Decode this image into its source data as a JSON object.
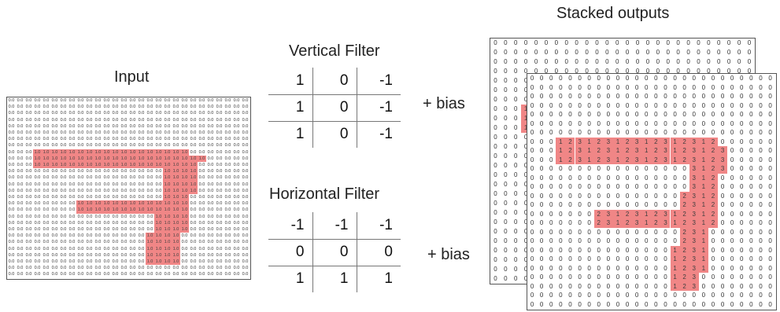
{
  "input": {
    "title": "Input",
    "rows": 28,
    "cols": 28,
    "highlight_color": "#f08080"
  },
  "vertical_filter": {
    "title": "Vertical Filter",
    "values": [
      [
        "1",
        "0",
        "-1"
      ],
      [
        "1",
        "0",
        "-1"
      ],
      [
        "1",
        "0",
        "-1"
      ]
    ],
    "bias_label": "+ bias"
  },
  "horizontal_filter": {
    "title": "Horizontal Filter",
    "values": [
      [
        "-1",
        "-1",
        "-1"
      ],
      [
        "0",
        "0",
        "0"
      ],
      [
        "1",
        "1",
        "1"
      ]
    ],
    "bias_label": "+ bias"
  },
  "output": {
    "title": "Stacked outputs",
    "rows": 26,
    "cols": 26,
    "highlight_color": "#f08080"
  }
}
